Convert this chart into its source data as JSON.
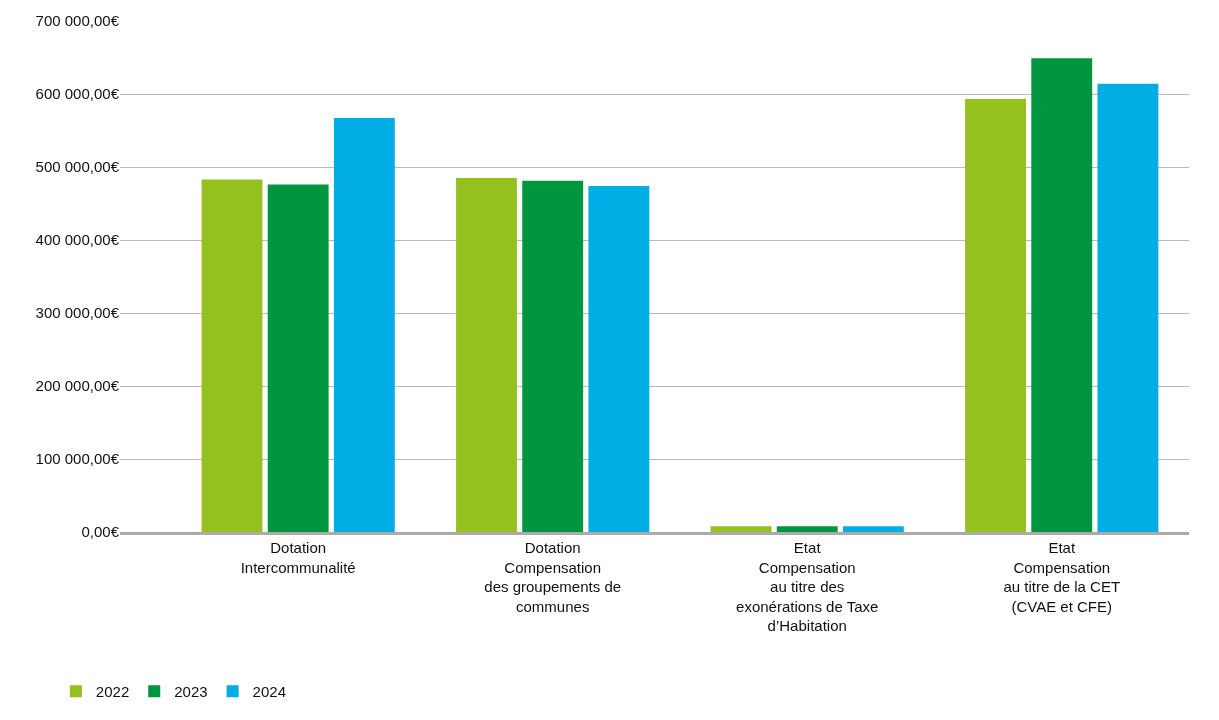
{
  "chart_data": {
    "type": "bar",
    "categories": [
      "Dotation\nIntercommunalité",
      "Dotation\nCompensation\ndes groupements de\ncommunes",
      "Etat\nCompensation\nau titre des\nexonérations de Taxe\nd’Habitation",
      "Etat\nCompensation\nau titre de la CET\n(CVAE et CFE)"
    ],
    "series": [
      {
        "name": "2022",
        "color": "#95c11f",
        "values": [
          483000,
          485000,
          8000,
          593000
        ]
      },
      {
        "name": "2023",
        "color": "#009640",
        "values": [
          476000,
          481000,
          8000,
          649000
        ]
      },
      {
        "name": "2024",
        "color": "#00aee5",
        "values": [
          567000,
          474000,
          8000,
          614000
        ]
      }
    ],
    "ylim": [
      0,
      700000
    ],
    "yticks": [
      {
        "value": 0,
        "label": "0,00€"
      },
      {
        "value": 100000,
        "label": "100 000,00€"
      },
      {
        "value": 200000,
        "label": "200 000,00€"
      },
      {
        "value": 300000,
        "label": "300 000,00€"
      },
      {
        "value": 400000,
        "label": "400 000,00€"
      },
      {
        "value": 500000,
        "label": "500 000,00€"
      },
      {
        "value": 600000,
        "label": "600 000,00€"
      },
      {
        "value": 700000,
        "label": "700 000,00€"
      }
    ],
    "grid": "y",
    "legend": "bottom left"
  }
}
